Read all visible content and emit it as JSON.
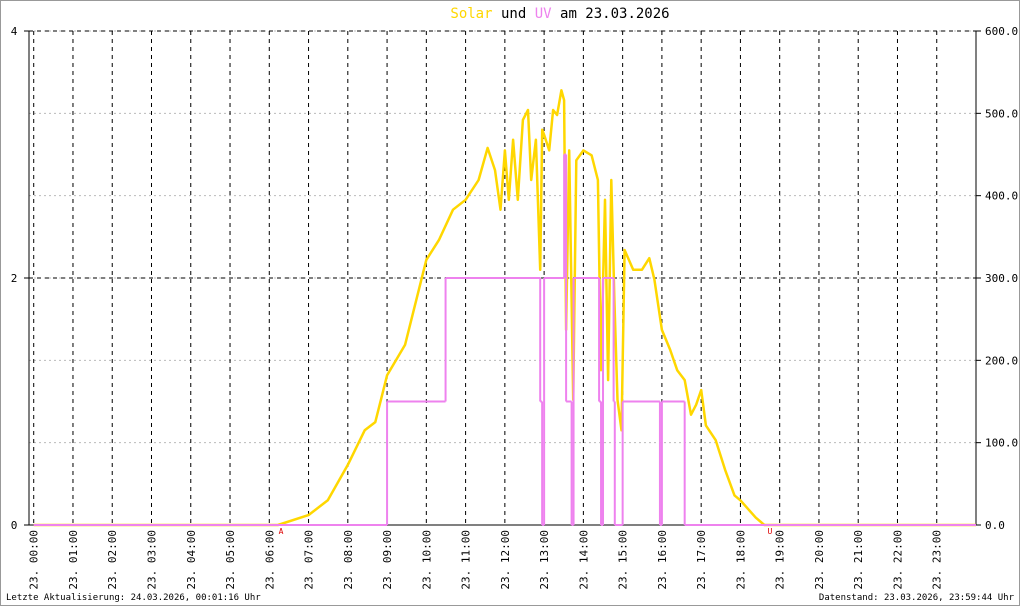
{
  "chart_data": {
    "type": "line",
    "title_parts": [
      "Solar",
      "und",
      "UV",
      "am 23.03.2026"
    ],
    "xlim": [
      -0.12,
      24.0
    ],
    "xticks": [
      {
        "value": 0,
        "label": "23. 00:00"
      },
      {
        "value": 1,
        "label": "23. 01:00"
      },
      {
        "value": 2,
        "label": "23. 02:00"
      },
      {
        "value": 3,
        "label": "23. 03:00"
      },
      {
        "value": 4,
        "label": "23. 04:00"
      },
      {
        "value": 5,
        "label": "23. 05:00"
      },
      {
        "value": 6,
        "label": "23. 06:00"
      },
      {
        "value": 7,
        "label": "23. 07:00"
      },
      {
        "value": 8,
        "label": "23. 08:00"
      },
      {
        "value": 9,
        "label": "23. 09:00"
      },
      {
        "value": 10,
        "label": "23. 10:00"
      },
      {
        "value": 11,
        "label": "23. 11:00"
      },
      {
        "value": 12,
        "label": "23. 12:00"
      },
      {
        "value": 13,
        "label": "23. 13:00"
      },
      {
        "value": 14,
        "label": "23. 14:00"
      },
      {
        "value": 15,
        "label": "23. 15:00"
      },
      {
        "value": 16,
        "label": "23. 16:00"
      },
      {
        "value": 17,
        "label": "23. 17:00"
      },
      {
        "value": 18,
        "label": "23. 18:00"
      },
      {
        "value": 19,
        "label": "23. 19:00"
      },
      {
        "value": 20,
        "label": "23. 20:00"
      },
      {
        "value": 21,
        "label": "23. 21:00"
      },
      {
        "value": 22,
        "label": "23. 22:00"
      },
      {
        "value": 23,
        "label": "23. 23:00"
      }
    ],
    "ylim": [
      0,
      4
    ],
    "yticks": [
      0,
      2,
      4
    ],
    "y2lim": [
      0,
      600
    ],
    "y2ticks": [
      {
        "value": 0,
        "label": "0.0"
      },
      {
        "value": 100,
        "label": "100.0"
      },
      {
        "value": 200,
        "label": "200.0"
      },
      {
        "value": 300,
        "label": "300.0"
      },
      {
        "value": 400,
        "label": "400.0"
      },
      {
        "value": 500,
        "label": "500.0"
      },
      {
        "value": 600,
        "label": "600.0"
      }
    ],
    "grid": true,
    "series": [
      {
        "name": "Solar",
        "color": "#ffd700",
        "axis": "y2",
        "style": "line",
        "x": [
          0,
          6.22,
          7.0,
          7.49,
          8.0,
          8.43,
          8.7,
          9.0,
          9.46,
          10,
          10.32,
          10.68,
          11,
          11.33,
          11.56,
          11.75,
          11.89,
          12,
          12.1,
          12.21,
          12.33,
          12.46,
          12.59,
          12.67,
          12.79,
          12.9,
          12.95,
          13.0,
          13.13,
          13.23,
          13.33,
          13.44,
          13.51,
          13.56,
          13.64,
          13.74,
          13.82,
          14.0,
          14.21,
          14.37,
          14.45,
          14.55,
          14.63,
          14.71,
          14.79,
          14.87,
          14.97,
          15.05,
          15.27,
          15.49,
          15.68,
          15.81,
          16.0,
          16.21,
          16.39,
          16.58,
          16.74,
          16.87,
          17.0,
          17.12,
          17.37,
          17.61,
          17.85,
          18.0,
          18.39,
          18.61,
          24.0
        ],
        "values": [
          0,
          0,
          12,
          30,
          73,
          115,
          125,
          182,
          219,
          322,
          346,
          383,
          395,
          419,
          458,
          431,
          383,
          455,
          395,
          468,
          395,
          492,
          504,
          419,
          468,
          310,
          480,
          474,
          455,
          504,
          498,
          528,
          516,
          237,
          455,
          152,
          443,
          455,
          449,
          419,
          188,
          395,
          176,
          419,
          273,
          152,
          115,
          334,
          310,
          310,
          324,
          298,
          237,
          213,
          188,
          176,
          134,
          146,
          164,
          121,
          103,
          67,
          36,
          30,
          9,
          0,
          0
        ]
      },
      {
        "name": "UV",
        "color": "#ee82ee",
        "axis": "y",
        "style": "step",
        "x": [
          0,
          9.0,
          10.49,
          12.9,
          12.95,
          13.0,
          13.51,
          13.56,
          13.7,
          13.75,
          14.4,
          14.45,
          14.5,
          14.77,
          14.8,
          15.0,
          15.95,
          16.0,
          16.58
        ],
        "values": [
          0,
          1,
          2,
          1,
          0,
          2,
          3,
          1,
          0,
          2,
          1,
          0,
          2,
          1,
          0,
          1,
          0,
          1,
          0
        ]
      }
    ],
    "annotations": [
      {
        "text": "A",
        "x": 6.3
      },
      {
        "text": "U",
        "x": 18.75
      }
    ],
    "footer_left": "Letzte Aktualisierung: 24.03.2026, 00:01:16 Uhr",
    "footer_right": "Datenstand: 23.03.2026, 23:59:44 Uhr"
  }
}
